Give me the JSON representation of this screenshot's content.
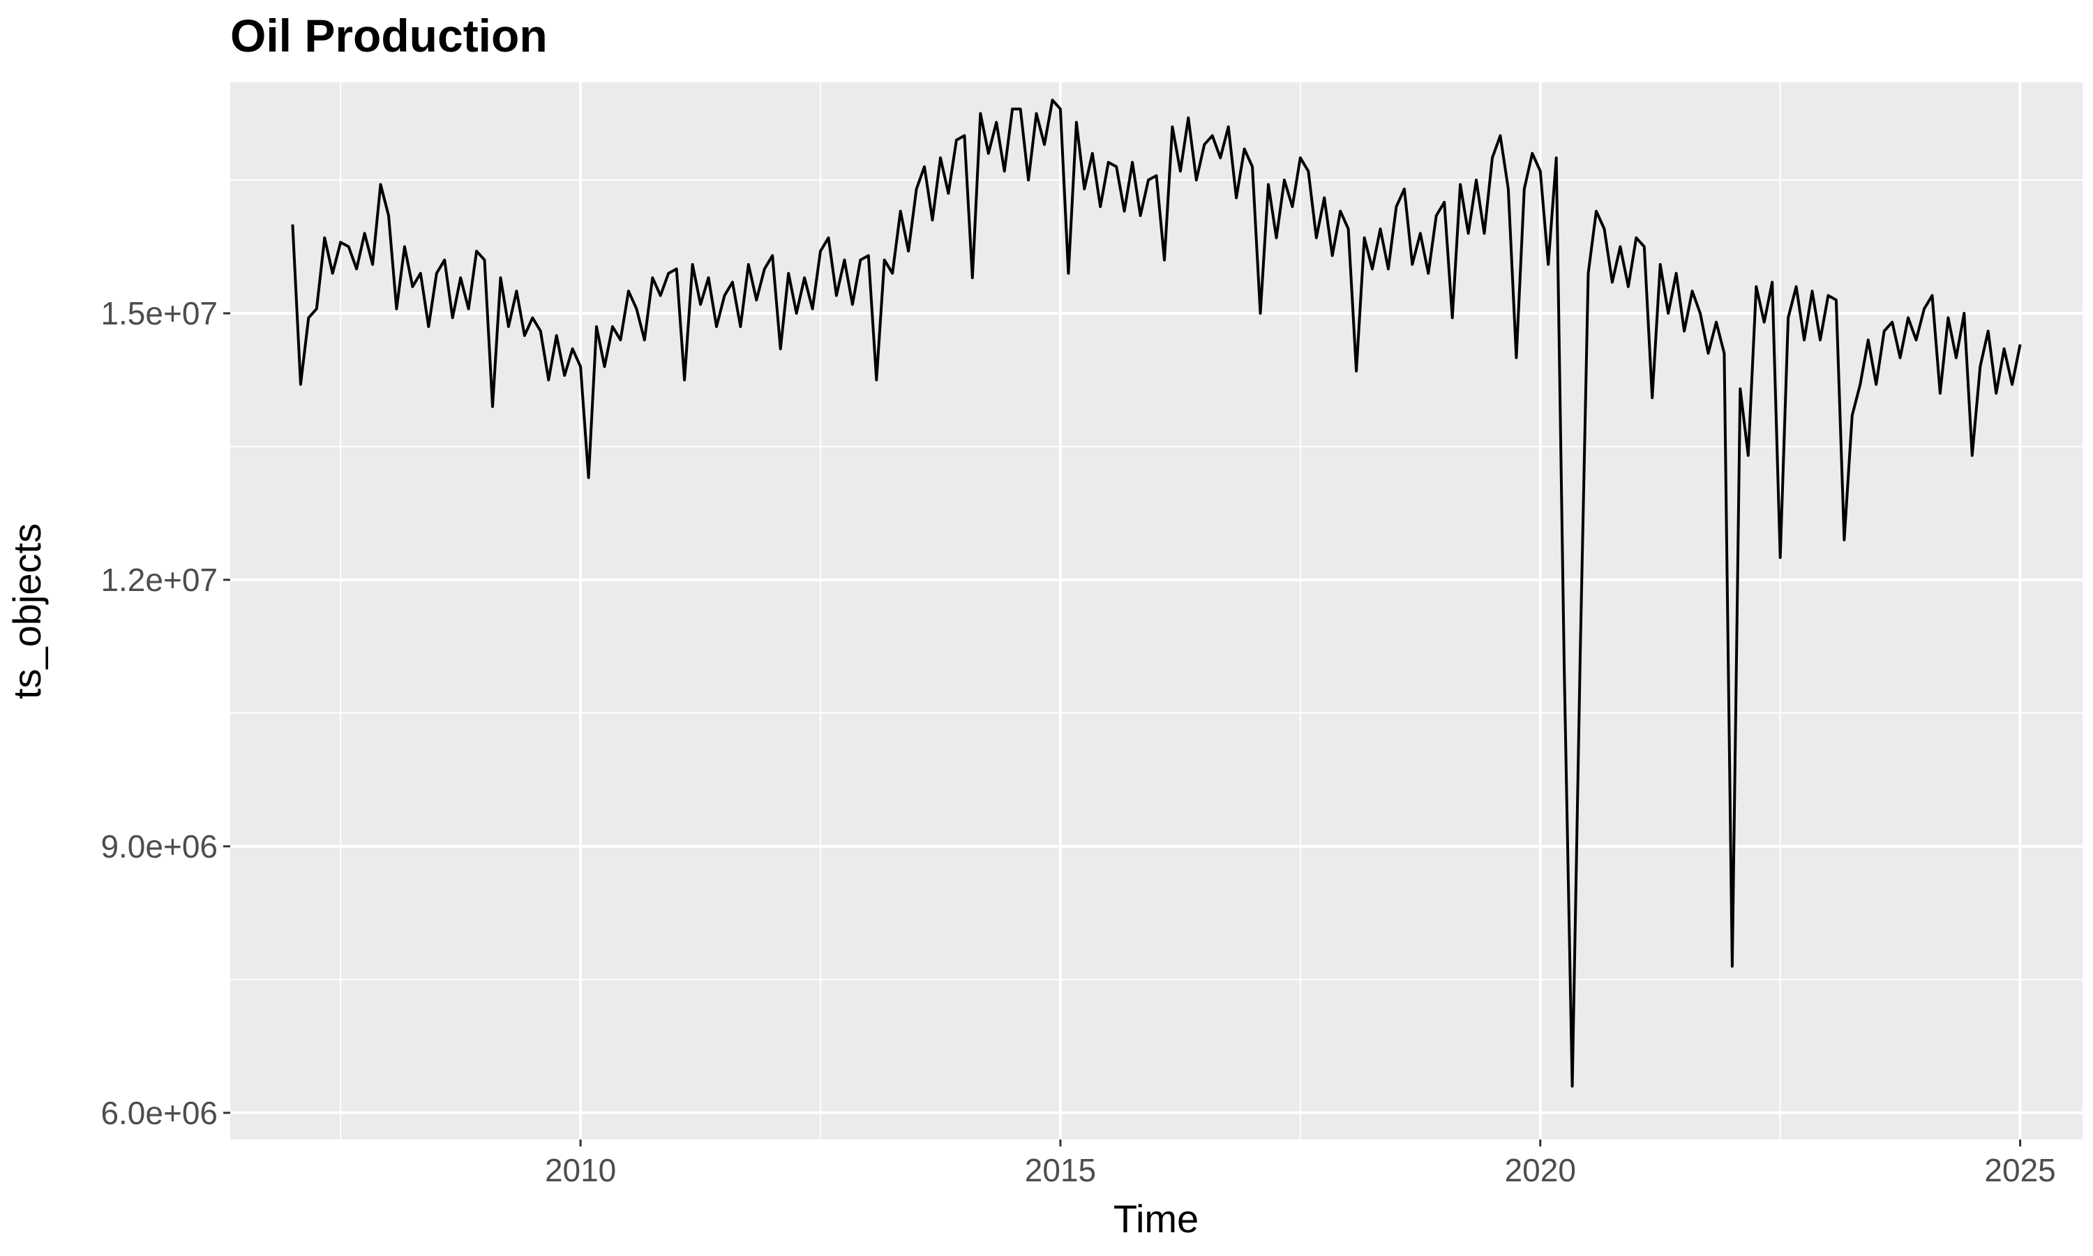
{
  "chart_data": {
    "type": "line",
    "title": "Oil Production",
    "xlabel": "Time",
    "ylabel": "ts_objects",
    "xlim": [
      2006.35,
      2025.65
    ],
    "ylim": [
      5700000,
      17600000
    ],
    "x_ticks": [
      2010,
      2015,
      2020,
      2025
    ],
    "x_tick_labels": [
      "2010",
      "2015",
      "2020",
      "2025"
    ],
    "y_ticks": [
      6000000,
      9000000,
      12000000,
      15000000
    ],
    "y_tick_labels": [
      "6.0e+06",
      "9.0e+06",
      "1.2e+07",
      "1.5e+07"
    ],
    "x_minor_ticks": [
      2007.5,
      2012.5,
      2017.5,
      2022.5
    ],
    "y_minor_ticks": [
      7500000,
      10500000,
      13500000,
      16500000
    ],
    "grid": true,
    "panel_background": "#ebebeb",
    "line_color": "#000000",
    "series": [
      {
        "start": 2007.0,
        "step": 0.083333,
        "values": [
          16000000,
          14200000,
          14950000,
          15050000,
          15850000,
          15450000,
          15800000,
          15750000,
          15500000,
          15900000,
          15550000,
          16450000,
          16100000,
          15050000,
          15750000,
          15300000,
          15450000,
          14850000,
          15450000,
          15600000,
          14950000,
          15400000,
          15050000,
          15700000,
          15600000,
          13950000,
          15400000,
          14850000,
          15250000,
          14750000,
          14950000,
          14800000,
          14250000,
          14750000,
          14300000,
          14600000,
          14400000,
          13150000,
          14850000,
          14400000,
          14850000,
          14700000,
          15250000,
          15050000,
          14700000,
          15400000,
          15200000,
          15450000,
          15500000,
          14250000,
          15550000,
          15100000,
          15400000,
          14850000,
          15200000,
          15350000,
          14850000,
          15550000,
          15150000,
          15500000,
          15650000,
          14600000,
          15450000,
          15000000,
          15400000,
          15050000,
          15700000,
          15850000,
          15200000,
          15600000,
          15100000,
          15600000,
          15650000,
          14250000,
          15600000,
          15450000,
          16150000,
          15700000,
          16400000,
          16650000,
          16050000,
          16750000,
          16350000,
          16950000,
          17000000,
          15400000,
          17250000,
          16800000,
          17150000,
          16600000,
          17300000,
          17300000,
          16500000,
          17250000,
          16900000,
          17400000,
          17300000,
          15450000,
          17150000,
          16400000,
          16800000,
          16200000,
          16700000,
          16650000,
          16150000,
          16700000,
          16100000,
          16500000,
          16550000,
          15600000,
          17100000,
          16600000,
          17200000,
          16500000,
          16900000,
          17000000,
          16750000,
          17100000,
          16300000,
          16850000,
          16650000,
          15000000,
          16450000,
          15850000,
          16500000,
          16200000,
          16750000,
          16600000,
          15850000,
          16300000,
          15650000,
          16150000,
          15950000,
          14350000,
          15850000,
          15500000,
          15950000,
          15500000,
          16200000,
          16400000,
          15550000,
          15900000,
          15450000,
          16100000,
          16250000,
          14950000,
          16450000,
          15900000,
          16500000,
          15900000,
          16750000,
          17000000,
          16400000,
          14500000,
          16400000,
          16800000,
          16600000,
          15550000,
          16750000,
          11000000,
          6300000,
          11200000,
          15450000,
          16150000,
          15950000,
          15350000,
          15750000,
          15300000,
          15850000,
          15750000,
          14050000,
          15550000,
          15000000,
          15450000,
          14800000,
          15250000,
          15000000,
          14550000,
          14900000,
          14550000,
          7650000,
          14150000,
          13400000,
          15300000,
          14900000,
          15350000,
          12250000,
          14950000,
          15300000,
          14700000,
          15250000,
          14700000,
          15200000,
          15150000,
          12450000,
          13850000,
          14200000,
          14700000,
          14200000,
          14800000,
          14900000,
          14500000,
          14950000,
          14700000,
          15050000,
          15200000,
          14100000,
          14950000,
          14500000,
          15000000,
          13400000,
          14400000,
          14800000,
          14100000,
          14600000,
          14200000,
          14650000
        ]
      }
    ]
  }
}
